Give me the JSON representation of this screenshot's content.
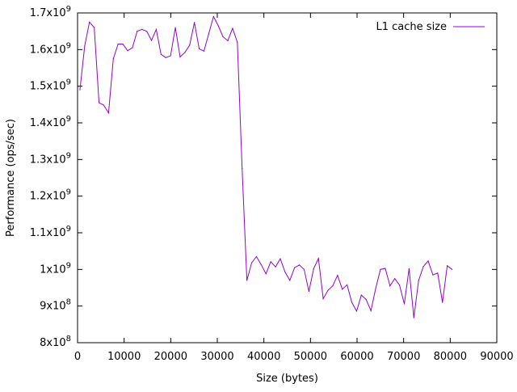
{
  "chart_data": {
    "type": "line",
    "xlabel": "Size (bytes)",
    "ylabel": "Performance (ops/sec)",
    "xlim": [
      0,
      90000
    ],
    "ylim": [
      800000000,
      1700000000
    ],
    "x_ticks": [
      {
        "value": 0,
        "label": "0"
      },
      {
        "value": 10000,
        "label": "10000"
      },
      {
        "value": 20000,
        "label": "20000"
      },
      {
        "value": 30000,
        "label": "30000"
      },
      {
        "value": 40000,
        "label": "40000"
      },
      {
        "value": 50000,
        "label": "50000"
      },
      {
        "value": 60000,
        "label": "60000"
      },
      {
        "value": 70000,
        "label": "70000"
      },
      {
        "value": 80000,
        "label": "80000"
      },
      {
        "value": 90000,
        "label": "90000"
      }
    ],
    "y_ticks": [
      {
        "value": 800000000,
        "mantissa": "8x10",
        "exp": "8"
      },
      {
        "value": 900000000,
        "mantissa": "9x10",
        "exp": "8"
      },
      {
        "value": 1000000000,
        "mantissa": "1x10",
        "exp": "9"
      },
      {
        "value": 1100000000,
        "mantissa": "1.1x10",
        "exp": "9"
      },
      {
        "value": 1200000000,
        "mantissa": "1.2x10",
        "exp": "9"
      },
      {
        "value": 1300000000,
        "mantissa": "1.3x10",
        "exp": "9"
      },
      {
        "value": 1400000000,
        "mantissa": "1.4x10",
        "exp": "9"
      },
      {
        "value": 1500000000,
        "mantissa": "1.5x10",
        "exp": "9"
      },
      {
        "value": 1600000000,
        "mantissa": "1.6x10",
        "exp": "9"
      },
      {
        "value": 1700000000,
        "mantissa": "1.7x10",
        "exp": "9"
      }
    ],
    "grid": false,
    "legend_position": "top-right",
    "series": [
      {
        "name": "L1 cache size",
        "color": "#9400d3",
        "x": [
          512,
          1536,
          2560,
          3584,
          4608,
          5632,
          6656,
          7680,
          8704,
          9728,
          10752,
          11776,
          12800,
          13824,
          14848,
          15872,
          16896,
          17920,
          18944,
          19968,
          20992,
          22016,
          23040,
          24064,
          25088,
          26112,
          27136,
          28160,
          29184,
          29696,
          30208,
          31232,
          32256,
          33280,
          34304,
          35328,
          36352,
          37376,
          38400,
          39424,
          40448,
          41472,
          42496,
          43520,
          44544,
          45568,
          46592,
          47616,
          48640,
          49664,
          50688,
          51712,
          52736,
          53760,
          54784,
          55808,
          56832,
          57856,
          58880,
          59904,
          60928,
          61952,
          62976,
          64000,
          65024,
          66048,
          67072,
          68096,
          69120,
          70144,
          71168,
          72192,
          73216,
          74240,
          75264,
          76288,
          77312,
          78336,
          79360,
          80384
        ],
        "y": [
          1490000000,
          1610000000,
          1675000000,
          1660000000,
          1455000000,
          1448000000,
          1427000000,
          1575000000,
          1615000000,
          1615000000,
          1597000000,
          1605000000,
          1650000000,
          1655000000,
          1650000000,
          1625000000,
          1655000000,
          1587000000,
          1578000000,
          1583000000,
          1660000000,
          1580000000,
          1592000000,
          1612000000,
          1674000000,
          1602000000,
          1596000000,
          1643000000,
          1690000000,
          1678000000,
          1665000000,
          1635000000,
          1624000000,
          1658000000,
          1620000000,
          1275000000,
          970000000,
          1018000000,
          1035000000,
          1013000000,
          988000000,
          1021000000,
          1007000000,
          1029000000,
          993000000,
          970000000,
          1005000000,
          1012000000,
          1000000000,
          940000000,
          1002000000,
          1030000000,
          920000000,
          943000000,
          955000000,
          984000000,
          946000000,
          958000000,
          910000000,
          886000000,
          930000000,
          918000000,
          887000000,
          948000000,
          1000000000,
          1003000000,
          955000000,
          975000000,
          957000000,
          906000000,
          1002000000,
          868000000,
          970000000,
          1008000000,
          1023000000,
          985000000,
          990000000,
          910000000,
          1010000000,
          1000000000
        ]
      }
    ]
  }
}
